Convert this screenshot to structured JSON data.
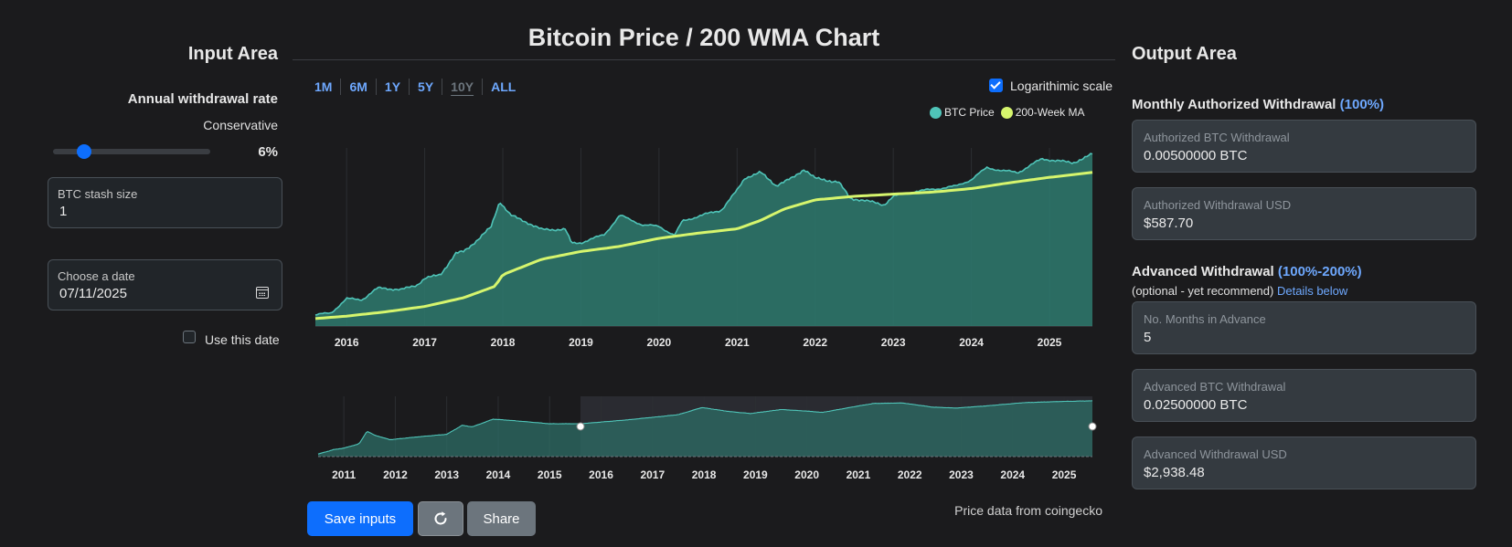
{
  "input_area": {
    "title": "Input Area",
    "rate_label": "Annual withdrawal rate",
    "rate_mode": "Conservative",
    "rate_slider": {
      "value": 6,
      "min": 0,
      "max": 30
    },
    "rate_value": "6%",
    "stash_label": "BTC stash size",
    "stash_value": "1",
    "date_label": "Choose a date",
    "date_value": "07/11/2025",
    "use_date_label": "Use this date",
    "use_date_checked": false
  },
  "chart": {
    "title": "Bitcoin Price / 200 WMA Chart",
    "ranges": [
      {
        "label": "1M",
        "active": false
      },
      {
        "label": "6M",
        "active": false
      },
      {
        "label": "1Y",
        "active": false
      },
      {
        "label": "5Y",
        "active": false
      },
      {
        "label": "10Y",
        "active": true
      },
      {
        "label": "ALL",
        "active": false
      }
    ],
    "log_scale_label": "Logarithimic scale",
    "log_scale_checked": true,
    "legend": [
      {
        "name": "BTC Price",
        "color": "#4fc4b8"
      },
      {
        "name": "200-Week MA",
        "color": "#d6f56d"
      }
    ],
    "credit": "Price data from coingecko"
  },
  "chart_data": [
    {
      "type": "area",
      "x_range": [
        2015.6,
        2025.55
      ],
      "x_ticks": [
        "2016",
        "2017",
        "2018",
        "2019",
        "2020",
        "2021",
        "2022",
        "2023",
        "2024",
        "2025"
      ],
      "y_scale": "log",
      "y_range_usd": [
        150,
        150000
      ],
      "series": [
        {
          "name": "BTC Price",
          "color": "#4fc4b8",
          "x": [
            2015.6,
            2015.8,
            2016.0,
            2016.2,
            2016.4,
            2016.5,
            2016.7,
            2016.9,
            2017.0,
            2017.2,
            2017.4,
            2017.5,
            2017.7,
            2017.85,
            2017.96,
            2018.1,
            2018.3,
            2018.5,
            2018.8,
            2018.88,
            2019.0,
            2019.3,
            2019.5,
            2019.8,
            2020.0,
            2020.2,
            2020.3,
            2020.6,
            2020.8,
            2021.0,
            2021.1,
            2021.3,
            2021.5,
            2021.7,
            2021.86,
            2022.0,
            2022.3,
            2022.45,
            2022.6,
            2022.88,
            2023.0,
            2023.3,
            2023.5,
            2023.8,
            2024.0,
            2024.2,
            2024.4,
            2024.6,
            2024.9,
            2025.0,
            2025.3,
            2025.55
          ],
          "values": [
            230,
            250,
            430,
            420,
            650,
            650,
            610,
            740,
            950,
            1100,
            2500,
            2700,
            4500,
            7000,
            19000,
            11000,
            8500,
            6300,
            6400,
            3700,
            3800,
            5200,
            11000,
            7500,
            7200,
            5000,
            8800,
            11500,
            13500,
            29000,
            47000,
            58000,
            35000,
            46000,
            66000,
            46000,
            40000,
            21000,
            20000,
            16500,
            23000,
            28000,
            30000,
            34000,
            44000,
            70000,
            62000,
            58000,
            98000,
            95000,
            84000,
            118000
          ]
        },
        {
          "name": "200-Week MA",
          "color": "#d6f56d",
          "x": [
            2015.6,
            2016.0,
            2016.5,
            2017.0,
            2017.5,
            2017.9,
            2018.0,
            2018.5,
            2019.0,
            2019.5,
            2020.0,
            2020.5,
            2021.0,
            2021.3,
            2021.6,
            2022.0,
            2022.5,
            2023.0,
            2023.5,
            2024.0,
            2024.5,
            2025.0,
            2025.55
          ],
          "values": [
            200,
            220,
            260,
            320,
            450,
            700,
            1100,
            2000,
            2700,
            3300,
            4500,
            5500,
            6500,
            9000,
            14000,
            20000,
            23000,
            25000,
            27000,
            31000,
            39000,
            48000,
            58000
          ]
        }
      ]
    },
    {
      "type": "area",
      "name": "navigator",
      "x_range": [
        2010.5,
        2025.55
      ],
      "x_ticks": [
        "2011",
        "2012",
        "2013",
        "2014",
        "2015",
        "2016",
        "2017",
        "2018",
        "2019",
        "2020",
        "2021",
        "2022",
        "2023",
        "2024",
        "2025"
      ],
      "selection": [
        2015.6,
        2025.55
      ],
      "series": [
        {
          "name": "BTC Price",
          "color": "#4fc4b8",
          "x": [
            2010.5,
            2010.8,
            2011.0,
            2011.3,
            2011.45,
            2011.6,
            2011.9,
            2012.5,
            2013.0,
            2013.3,
            2013.5,
            2013.9,
            2014.2,
            2015.0,
            2015.6,
            2016.5,
            2017.5,
            2017.96,
            2018.5,
            2018.9,
            2019.5,
            2020.0,
            2020.3,
            2021.0,
            2021.3,
            2021.86,
            2022.45,
            2022.9,
            2023.5,
            2024.2,
            2024.9,
            2025.55
          ],
          "values": [
            0.06,
            0.2,
            0.3,
            1,
            30,
            10,
            3,
            7,
            13,
            150,
            100,
            800,
            600,
            230,
            230,
            650,
            2700,
            19000,
            6300,
            3700,
            11000,
            7200,
            5000,
            29000,
            58000,
            66000,
            21000,
            16500,
            30000,
            70000,
            98000,
            118000
          ]
        }
      ]
    }
  ],
  "buttons": {
    "save": "Save inputs",
    "reload_icon": "reload-icon",
    "share": "Share"
  },
  "output_area": {
    "title": "Output Area",
    "monthly_heading": "Monthly Authorized Withdrawal",
    "monthly_pct": "(100%)",
    "auth_btc_label": "Authorized BTC Withdrawal",
    "auth_btc_value": "0.00500000 BTC",
    "auth_usd_label": "Authorized Withdrawal USD",
    "auth_usd_value": "$587.70",
    "advanced_heading": "Advanced Withdrawal",
    "advanced_pct": "(100%-200%)",
    "advanced_sub": "(optional - yet recommend)",
    "details_link": "Details below",
    "months_label": "No. Months in Advance",
    "months_value": "5",
    "adv_btc_label": "Advanced BTC Withdrawal",
    "adv_btc_value": "0.02500000 BTC",
    "adv_usd_label": "Advanced Withdrawal USD",
    "adv_usd_value": "$2,938.48"
  }
}
